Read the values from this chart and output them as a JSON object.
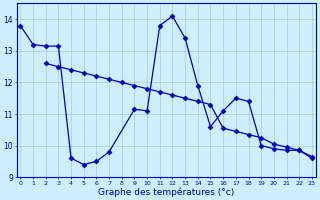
{
  "xlabel": "Graphe des températures (°c)",
  "bg_color": "#cceeff",
  "grid_color": "#aacccc",
  "line_color": "#0000bb",
  "curve1_x": [
    0,
    1,
    2,
    3,
    4,
    5,
    6,
    7,
    9,
    10,
    11,
    12,
    13,
    14,
    15,
    16,
    17,
    18,
    19,
    20,
    21,
    22,
    23
  ],
  "curve1_y": [
    13.8,
    13.2,
    13.15,
    13.15,
    9.6,
    9.4,
    9.5,
    9.8,
    11.15,
    11.1,
    13.8,
    14.1,
    13.4,
    11.9,
    10.6,
    11.1,
    11.5,
    11.4,
    10.0,
    9.9,
    9.85,
    9.85,
    9.6
  ],
  "curve2_x": [
    2,
    3,
    4,
    5,
    6,
    7,
    8,
    9,
    10,
    11,
    12,
    13,
    14,
    15,
    16,
    17,
    18,
    19,
    20,
    21,
    22,
    23
  ],
  "curve2_y": [
    12.6,
    12.5,
    12.4,
    12.3,
    12.2,
    12.1,
    12.0,
    11.9,
    11.8,
    11.7,
    11.6,
    11.5,
    11.4,
    11.3,
    10.55,
    10.45,
    10.35,
    10.25,
    10.05,
    9.95,
    9.85,
    9.65
  ],
  "ylim": [
    9.0,
    14.5
  ],
  "yticks": [
    9,
    10,
    11,
    12,
    13,
    14
  ],
  "xlim": [
    -0.3,
    23.3
  ],
  "marker": "D",
  "markersize": 2.5,
  "linewidth": 0.9
}
